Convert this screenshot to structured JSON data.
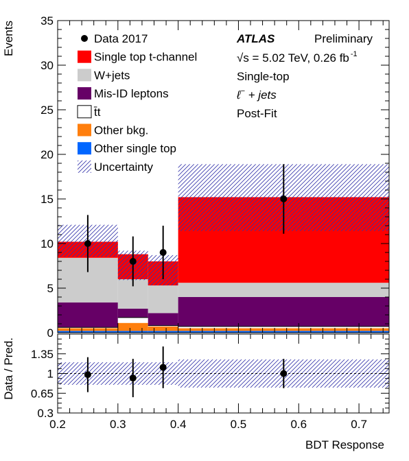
{
  "chart_data": {
    "type": "bar",
    "stacked": true,
    "title": "",
    "xlabel": "BDT Response",
    "ylabel": "Events",
    "xlim": [
      0.2,
      0.75
    ],
    "ylim": [
      0,
      35
    ],
    "x_ticks": [
      "0.2",
      "0.3",
      "0.4",
      "0.5",
      "0.6",
      "0.7"
    ],
    "y_ticks": [
      "0",
      "5",
      "10",
      "15",
      "20",
      "25",
      "30",
      "35"
    ],
    "bins": [
      [
        0.2,
        0.3
      ],
      [
        0.3,
        0.35
      ],
      [
        0.35,
        0.4
      ],
      [
        0.4,
        0.75
      ]
    ],
    "series": [
      {
        "name": "Other single top",
        "color": "#0066ff",
        "values": [
          0.2,
          0.2,
          0.2,
          0.2
        ]
      },
      {
        "name": "Other bkg.",
        "color": "#ff7f0e",
        "values": [
          0.3,
          0.9,
          0.5,
          0.3
        ]
      },
      {
        "name": "t̄t",
        "color": "#ffffff",
        "values": [
          0.1,
          0.6,
          0.1,
          0.2
        ]
      },
      {
        "name": "Mis-ID leptons",
        "color": "#660066",
        "values": [
          2.8,
          1.0,
          1.4,
          3.3
        ]
      },
      {
        "name": "W+jets",
        "color": "#cccccc",
        "values": [
          5.0,
          3.3,
          3.1,
          1.6
        ]
      },
      {
        "name": "Single top t-channel",
        "color": "#ff0000",
        "values": [
          1.8,
          2.8,
          2.7,
          9.6
        ]
      }
    ],
    "uncertainty": {
      "name": "Uncertainty",
      "down": [
        8.5,
        5.9,
        5.3,
        11.4
      ],
      "up": [
        12.1,
        9.2,
        8.7,
        18.9
      ]
    },
    "data": {
      "name": "Data 2017",
      "x": [
        0.25,
        0.325,
        0.375,
        0.575
      ],
      "y": [
        10,
        8,
        9,
        15
      ],
      "err": [
        3.2,
        2.8,
        3.0,
        3.9
      ]
    },
    "ratio": {
      "ylabel": "Data / Pred.",
      "ylim": [
        0.3,
        1.7
      ],
      "y_ticks": [
        "0.3",
        "0.65",
        "1",
        "1.35"
      ],
      "x": [
        0.25,
        0.325,
        0.375,
        0.575
      ],
      "y": [
        0.98,
        0.92,
        1.11,
        1.0
      ],
      "err": [
        0.31,
        0.34,
        0.37,
        0.26
      ],
      "band": [
        0.2,
        0.2,
        0.2,
        0.25
      ]
    },
    "annotations": {
      "atlas": "ATLAS",
      "preliminary": "Preliminary",
      "energy_prefix": "√s = 5.02 TeV, 0.26 fb",
      "energy_sup": "-1",
      "region": "Single-top",
      "channel_lep": "ℓ",
      "channel_charge": "−",
      "channel_rest": " + jets",
      "fit": "Post-Fit"
    },
    "legend_position": "top-left"
  }
}
